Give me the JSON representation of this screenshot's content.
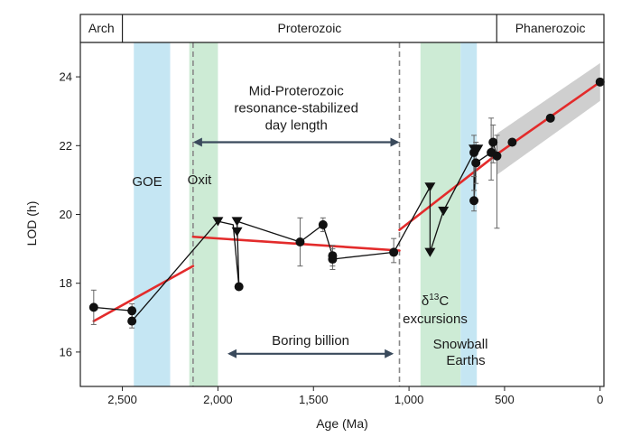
{
  "chart_data": {
    "type": "scatter",
    "xlabel": "Age (Ma)",
    "ylabel": "LOD (h)",
    "xlim": [
      2720,
      -20
    ],
    "ylim": [
      15,
      25
    ],
    "x_ticks": [
      2500,
      2000,
      1500,
      1000,
      500,
      0
    ],
    "x_tick_labels": [
      "2,500",
      "2,000",
      "1,500",
      "1,000",
      "500",
      "0"
    ],
    "y_ticks": [
      16,
      18,
      20,
      22,
      24
    ],
    "y_tick_labels": [
      "16",
      "18",
      "20",
      "22",
      "24"
    ],
    "eras": [
      {
        "label": "Arch",
        "from": 2720,
        "to": 2500
      },
      {
        "label": "Proterozoic",
        "from": 2500,
        "to": 541
      },
      {
        "label": "Phanerozoic",
        "from": 541,
        "to": -20
      }
    ],
    "bands": [
      {
        "from": 2440,
        "to": 2250,
        "color": "#c5e6f3"
      },
      {
        "from": 2150,
        "to": 2000,
        "color": "#cdebd5"
      },
      {
        "from": 940,
        "to": 730,
        "color": "#cdebd5"
      },
      {
        "from": 730,
        "to": 645,
        "color": "#c5e6f3"
      }
    ],
    "band_labels": {
      "goe": "GOE",
      "oxit": "Oxit",
      "d13c_delta": "δ",
      "d13c_sup": "13",
      "d13c_C": "C",
      "d13c_line2": "excursions",
      "snowball_line1": "Snowball",
      "snowball_line2": "Earths"
    },
    "dashed_lines": [
      2130,
      1050
    ],
    "arrows": [
      {
        "from": 2130,
        "to": 1050,
        "y": 22.1,
        "label_lines": [
          "Mid-Proterozoic",
          "resonance-stabilized",
          "day length"
        ]
      },
      {
        "from": 1950,
        "to": 1080,
        "y": 15.95,
        "label_lines": [
          "Boring billion"
        ]
      }
    ],
    "circles": [
      {
        "x": 2650,
        "y": 17.3,
        "err": [
          16.8,
          17.8
        ]
      },
      {
        "x": 2450,
        "y": 17.2,
        "err": [
          17.0,
          17.4
        ]
      },
      {
        "x": 2450,
        "y": 16.9,
        "err": [
          16.7,
          17.1
        ]
      },
      {
        "x": 1890,
        "y": 17.9
      },
      {
        "x": 1570,
        "y": 19.2,
        "err": [
          18.5,
          19.9
        ]
      },
      {
        "x": 1450,
        "y": 19.7,
        "err": [
          19.5,
          19.9
        ]
      },
      {
        "x": 1400,
        "y": 18.8,
        "err": [
          18.5,
          19.1
        ]
      },
      {
        "x": 1400,
        "y": 18.7,
        "err": [
          18.4,
          19.0
        ]
      },
      {
        "x": 1080,
        "y": 18.9,
        "err": [
          18.6,
          19.3
        ]
      },
      {
        "x": 660,
        "y": 21.8,
        "err": [
          21.1,
          22.3
        ]
      },
      {
        "x": 650,
        "y": 21.5,
        "err": [
          20.9,
          22.1
        ]
      },
      {
        "x": 660,
        "y": 20.4,
        "err": [
          20.1,
          20.7
        ]
      },
      {
        "x": 560,
        "y": 22.1,
        "err": [
          21.5,
          22.6
        ]
      },
      {
        "x": 570,
        "y": 21.8,
        "err": [
          21.0,
          22.8
        ]
      },
      {
        "x": 540,
        "y": 21.7,
        "err": [
          19.6,
          22.3
        ]
      },
      {
        "x": 460,
        "y": 22.1
      },
      {
        "x": 260,
        "y": 22.8
      },
      {
        "x": 0,
        "y": 23.85
      }
    ],
    "triangles": [
      {
        "x": 2000,
        "y": 19.8
      },
      {
        "x": 1900,
        "y": 19.8
      },
      {
        "x": 1900,
        "y": 19.5
      },
      {
        "x": 890,
        "y": 20.8
      },
      {
        "x": 890,
        "y": 18.9
      },
      {
        "x": 820,
        "y": 20.1
      },
      {
        "x": 660,
        "y": 21.9
      },
      {
        "x": 640,
        "y": 21.9
      }
    ],
    "connection_path": [
      [
        2650,
        17.3
      ],
      [
        2450,
        17.2
      ],
      [
        2450,
        16.9
      ],
      [
        2000,
        19.8
      ],
      [
        1920,
        19.7
      ],
      [
        1890,
        17.9
      ],
      [
        1900,
        19.8
      ],
      [
        1570,
        19.2
      ],
      [
        1450,
        19.7
      ],
      [
        1400,
        18.8
      ],
      [
        1400,
        18.7
      ],
      [
        1080,
        18.9
      ],
      [
        890,
        20.8
      ],
      [
        890,
        18.9
      ],
      [
        820,
        20.1
      ],
      [
        660,
        21.8
      ],
      [
        660,
        20.4
      ],
      [
        650,
        21.5
      ],
      [
        570,
        21.8
      ],
      [
        560,
        22.1
      ],
      [
        540,
        21.7
      ]
    ],
    "fit_lines": [
      [
        [
          2650,
          16.9
        ],
        [
          2130,
          18.5
        ]
      ],
      [
        [
          2130,
          19.35
        ],
        [
          1050,
          18.95
        ]
      ],
      [
        [
          1050,
          19.55
        ],
        [
          540,
          21.75
        ]
      ],
      [
        [
          540,
          21.75
        ],
        [
          0,
          23.85
        ]
      ]
    ],
    "uncertainty_band": {
      "x": [
        540,
        0
      ],
      "upper": [
        22.35,
        24.4
      ],
      "lower": [
        21.15,
        23.3
      ]
    },
    "colors": {
      "fit": "#e32b2b",
      "marker": "#111111",
      "arrow": "#3a4a5c",
      "dashed": "#888888",
      "uncertainty": "#cfcfcf"
    }
  }
}
